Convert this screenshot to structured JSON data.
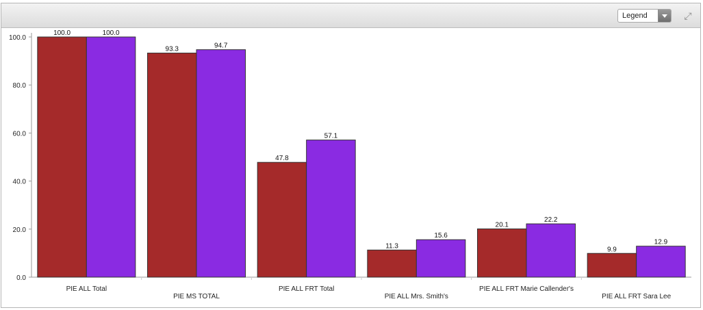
{
  "toolbar": {
    "legend_label": "Legend",
    "expand_icon": "expand-icon"
  },
  "chart_data": {
    "type": "bar",
    "categories": [
      "PIE ALL Total",
      "PIE MS TOTAL",
      "PIE ALL FRT Total",
      "PIE ALL Mrs. Smith's",
      "PIE ALL FRT Marie Callender's",
      "PIE ALL FRT Sara Lee"
    ],
    "series": [
      {
        "values": [
          100.0,
          93.3,
          47.8,
          11.3,
          20.1,
          9.9
        ],
        "color": "#a52a2a"
      },
      {
        "values": [
          100.0,
          94.7,
          57.1,
          15.6,
          22.2,
          12.9
        ],
        "color": "#8a2be2"
      }
    ],
    "yticks": [
      "0.0",
      "20.0",
      "40.0",
      "60.0",
      "80.0",
      "100.0"
    ],
    "ylim": [
      0,
      100
    ],
    "grid": false,
    "legend": "hidden"
  }
}
